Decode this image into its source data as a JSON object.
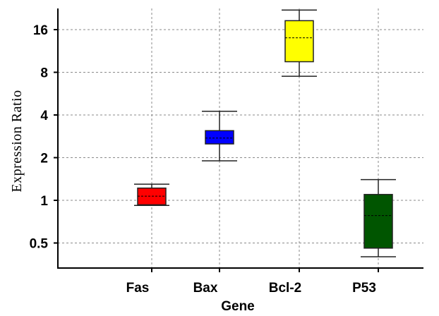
{
  "chart_data": {
    "type": "box",
    "title": "",
    "xlabel": "Gene",
    "ylabel": "Expression Ratio",
    "y_scale": "log2",
    "ylim": [
      0.35,
      26
    ],
    "y_ticks": [
      0.5,
      1,
      2,
      4,
      8,
      16
    ],
    "y_tick_labels": [
      "0.5",
      "1",
      "2",
      "4",
      "8",
      "16"
    ],
    "grid": true,
    "categories": [
      "Fas",
      "Bax",
      "Bcl-2",
      "P53"
    ],
    "boxes": [
      {
        "name": "Fas",
        "color": "#ff0000",
        "whisker_low": 0.92,
        "q1": 0.93,
        "median": 1.07,
        "q3": 1.22,
        "whisker_high": 1.3
      },
      {
        "name": "Bax",
        "color": "#0000ff",
        "whisker_low": 1.9,
        "q1": 2.5,
        "median": 2.75,
        "q3": 3.1,
        "whisker_high": 4.25
      },
      {
        "name": "Bcl-2",
        "color": "#ffff00",
        "whisker_low": 7.5,
        "q1": 9.5,
        "median": 14.0,
        "q3": 18.5,
        "whisker_high": 22.0
      },
      {
        "name": "P53",
        "color": "#005500",
        "whisker_low": 0.4,
        "q1": 0.46,
        "median": 0.78,
        "q3": 1.1,
        "whisker_high": 1.4
      }
    ]
  }
}
